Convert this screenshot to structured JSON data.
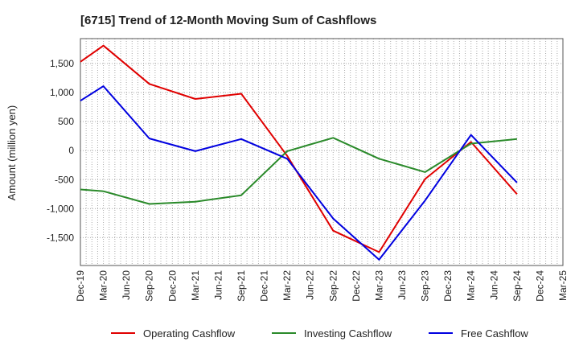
{
  "chart_data": {
    "type": "line",
    "title": "[6715]  Trend of 12-Month Moving Sum of Cashflows",
    "xlabel": "",
    "ylabel": "Amount (million yen)",
    "categories": [
      "Dec-19",
      "Mar-20",
      "Jun-20",
      "Sep-20",
      "Dec-20",
      "Mar-21",
      "Jun-21",
      "Sep-21",
      "Dec-21",
      "Mar-22",
      "Jun-22",
      "Sep-22",
      "Dec-22",
      "Mar-23",
      "Jun-23",
      "Sep-23",
      "Dec-23",
      "Mar-24",
      "Jun-24",
      "Sep-24",
      "Dec-24",
      "Mar-25"
    ],
    "ylim": [
      -1980,
      1930
    ],
    "yticks": [
      -1500,
      -1000,
      -500,
      0,
      500,
      1000,
      1500
    ],
    "ytick_labels": [
      "-1,500",
      "-1,000",
      "-500",
      "0",
      "500",
      "1,000",
      "1,500"
    ],
    "grid": true,
    "legend_position": "bottom",
    "series": [
      {
        "name": "Operating Cashflow",
        "color": "#e00000",
        "values": [
          1530,
          1810,
          null,
          1150,
          null,
          890,
          null,
          980,
          null,
          -90,
          null,
          -1380,
          null,
          -1750,
          null,
          -490,
          null,
          150,
          null,
          -750,
          null,
          null
        ]
      },
      {
        "name": "Investing Cashflow",
        "color": "#2a8a2a",
        "values": [
          -670,
          -700,
          null,
          -920,
          null,
          -880,
          null,
          -770,
          null,
          -10,
          null,
          220,
          null,
          -140,
          null,
          -370,
          null,
          120,
          null,
          200,
          null,
          null
        ]
      },
      {
        "name": "Free Cashflow",
        "color": "#0000e0",
        "values": [
          860,
          1110,
          null,
          210,
          null,
          -10,
          null,
          200,
          null,
          -140,
          null,
          -1170,
          null,
          -1880,
          null,
          -860,
          null,
          270,
          null,
          -550,
          null,
          null
        ]
      }
    ]
  }
}
